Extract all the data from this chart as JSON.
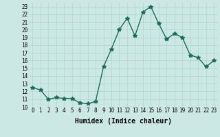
{
  "x": [
    0,
    1,
    2,
    3,
    4,
    5,
    6,
    7,
    8,
    9,
    10,
    11,
    12,
    13,
    14,
    15,
    16,
    17,
    18,
    19,
    20,
    21,
    22,
    23
  ],
  "y": [
    12.5,
    12.2,
    11.0,
    11.2,
    11.1,
    11.1,
    10.5,
    10.4,
    10.7,
    15.2,
    17.5,
    20.0,
    21.5,
    19.2,
    22.3,
    23.0,
    20.8,
    18.8,
    19.5,
    19.0,
    16.7,
    16.4,
    15.2,
    16.0
  ],
  "xlabel": "Humidex (Indice chaleur)",
  "line_color": "#1a6b5a",
  "marker": "*",
  "bg_color": "#cce8e4",
  "grid_color": "#aad4cc",
  "xlim": [
    -0.5,
    23.5
  ],
  "ylim": [
    10,
    23.5
  ],
  "yticks": [
    10,
    11,
    12,
    13,
    14,
    15,
    16,
    17,
    18,
    19,
    20,
    21,
    22,
    23
  ],
  "xticks": [
    0,
    1,
    2,
    3,
    4,
    5,
    6,
    7,
    8,
    9,
    10,
    11,
    12,
    13,
    14,
    15,
    16,
    17,
    18,
    19,
    20,
    21,
    22,
    23
  ],
  "xtick_labels": [
    "0",
    "1",
    "2",
    "3",
    "4",
    "5",
    "6",
    "7",
    "8",
    "9",
    "10",
    "11",
    "12",
    "13",
    "14",
    "15",
    "16",
    "17",
    "18",
    "19",
    "20",
    "21",
    "22",
    "23"
  ],
  "ytick_labels": [
    "10",
    "11",
    "12",
    "13",
    "14",
    "15",
    "16",
    "17",
    "18",
    "19",
    "20",
    "21",
    "22",
    "23"
  ],
  "tick_fontsize": 5.5,
  "xlabel_fontsize": 7,
  "line_width": 1.0,
  "marker_size": 4
}
